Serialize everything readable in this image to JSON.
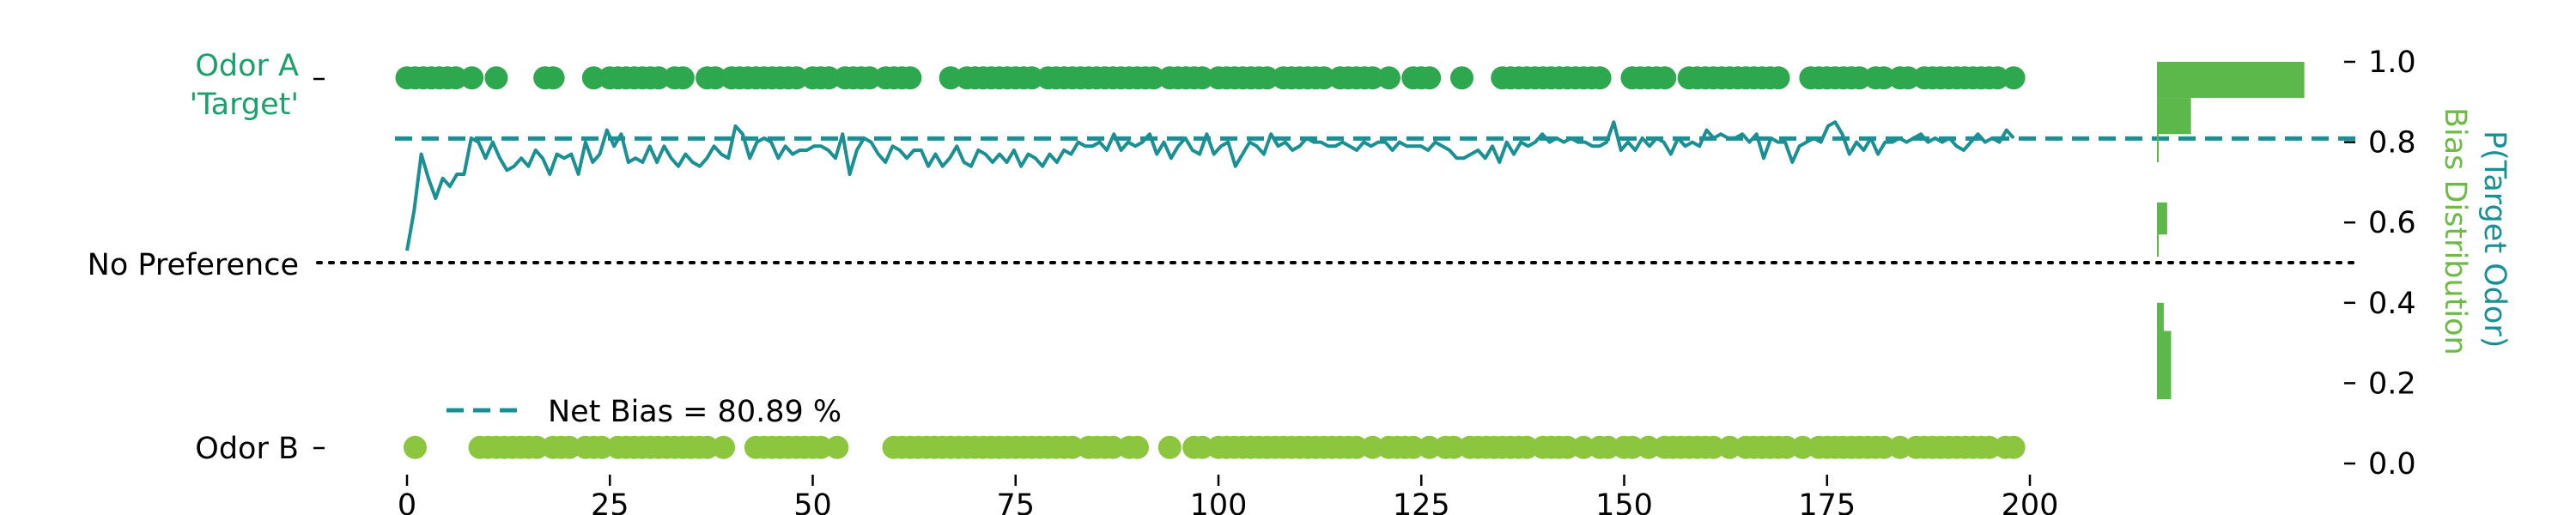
{
  "chart_data": {
    "type": "scatter",
    "title": "",
    "xlabel": "",
    "ylabel_left": "",
    "ylabel_right": "P(Target Odor)",
    "ylabel_right2": "Bias Distribution",
    "xlim": [
      0,
      200
    ],
    "ylim": [
      0,
      1
    ],
    "x_ticks": [
      0,
      25,
      50,
      75,
      100,
      125,
      150,
      175,
      200
    ],
    "right_ticks": [
      {
        "v": 0.0,
        "label": "0.0"
      },
      {
        "v": 0.2,
        "label": "0.2"
      },
      {
        "v": 0.4,
        "label": "0.4"
      },
      {
        "v": 0.6,
        "label": "0.6"
      },
      {
        "v": 0.8,
        "label": "0.8"
      },
      {
        "v": 1.0,
        "label": "1.0"
      }
    ],
    "left_labels": {
      "odor_a_line1": "Odor A",
      "odor_a_line2": "'Target'",
      "no_pref": "No Preference",
      "odor_b": "Odor B"
    },
    "legend": {
      "label": "Net Bias = 80.89 %",
      "placement": "lower-left"
    },
    "net_bias": 0.8089,
    "no_preference": 0.5,
    "odor_a_y": 0.96,
    "odor_b_y": 0.04,
    "colors": {
      "odor_a": "#2ea84f",
      "odor_b": "#8cc63f",
      "line": "#1a8f94",
      "hist": "#5cb84a",
      "odor_a_label": "#1aa06a",
      "hist_label": "#6dbb45"
    },
    "odor_a_trials": [
      0,
      1,
      2,
      3,
      4,
      5,
      6,
      8,
      11,
      17,
      18,
      23,
      25,
      26,
      27,
      28,
      29,
      30,
      31,
      33,
      34,
      37,
      38,
      40,
      41,
      42,
      43,
      44,
      45,
      46,
      47,
      48,
      50,
      51,
      52,
      54,
      55,
      56,
      57,
      59,
      60,
      61,
      62,
      67,
      69,
      70,
      71,
      72,
      73,
      74,
      75,
      76,
      77,
      79,
      80,
      81,
      82,
      83,
      84,
      85,
      86,
      87,
      88,
      89,
      90,
      91,
      92,
      94,
      95,
      96,
      97,
      98,
      100,
      101,
      102,
      103,
      104,
      105,
      106,
      108,
      109,
      110,
      111,
      112,
      113,
      115,
      116,
      117,
      118,
      119,
      121,
      124,
      125,
      126,
      130,
      135,
      136,
      137,
      138,
      139,
      140,
      141,
      142,
      143,
      144,
      145,
      146,
      147,
      151,
      152,
      153,
      154,
      155,
      158,
      159,
      160,
      161,
      162,
      163,
      164,
      165,
      166,
      167,
      168,
      169,
      173,
      174,
      175,
      176,
      177,
      178,
      179,
      181,
      182,
      184,
      185,
      187,
      188,
      189,
      190,
      191,
      192,
      193,
      194,
      195,
      196,
      198
    ],
    "odor_b_trials": [
      1,
      9,
      10,
      11,
      12,
      13,
      14,
      15,
      16,
      18,
      19,
      20,
      22,
      23,
      24,
      26,
      27,
      28,
      29,
      30,
      31,
      32,
      33,
      34,
      35,
      36,
      37,
      39,
      43,
      44,
      45,
      46,
      47,
      48,
      49,
      50,
      51,
      53,
      60,
      61,
      62,
      63,
      64,
      65,
      66,
      67,
      68,
      69,
      70,
      71,
      72,
      73,
      74,
      75,
      76,
      77,
      78,
      79,
      80,
      81,
      82,
      84,
      85,
      86,
      87,
      89,
      90,
      94,
      97,
      98,
      100,
      101,
      102,
      103,
      104,
      105,
      106,
      107,
      108,
      109,
      110,
      111,
      112,
      113,
      114,
      115,
      116,
      117,
      119,
      121,
      122,
      123,
      124,
      126,
      128,
      129,
      131,
      132,
      133,
      134,
      135,
      136,
      137,
      138,
      140,
      141,
      142,
      143,
      145,
      147,
      148,
      150,
      151,
      153,
      155,
      156,
      157,
      158,
      159,
      160,
      161,
      163,
      165,
      166,
      167,
      168,
      169,
      170,
      172,
      174,
      175,
      176,
      177,
      178,
      179,
      180,
      181,
      182,
      184,
      186,
      187,
      188,
      189,
      190,
      191,
      192,
      193,
      194,
      195,
      197,
      198
    ],
    "p_target": [
      0.53,
      0.63,
      0.77,
      0.71,
      0.66,
      0.71,
      0.69,
      0.72,
      0.72,
      0.81,
      0.8,
      0.76,
      0.8,
      0.76,
      0.73,
      0.74,
      0.76,
      0.74,
      0.78,
      0.76,
      0.72,
      0.77,
      0.76,
      0.77,
      0.72,
      0.8,
      0.75,
      0.77,
      0.83,
      0.79,
      0.82,
      0.75,
      0.76,
      0.75,
      0.79,
      0.75,
      0.79,
      0.76,
      0.74,
      0.77,
      0.75,
      0.74,
      0.76,
      0.79,
      0.77,
      0.76,
      0.84,
      0.82,
      0.76,
      0.8,
      0.81,
      0.8,
      0.76,
      0.79,
      0.77,
      0.78,
      0.78,
      0.79,
      0.79,
      0.78,
      0.76,
      0.82,
      0.72,
      0.78,
      0.81,
      0.8,
      0.77,
      0.75,
      0.79,
      0.78,
      0.76,
      0.78,
      0.78,
      0.74,
      0.77,
      0.74,
      0.76,
      0.79,
      0.75,
      0.74,
      0.78,
      0.77,
      0.75,
      0.77,
      0.75,
      0.78,
      0.74,
      0.77,
      0.76,
      0.74,
      0.77,
      0.75,
      0.78,
      0.77,
      0.8,
      0.79,
      0.79,
      0.8,
      0.78,
      0.82,
      0.78,
      0.8,
      0.79,
      0.8,
      0.82,
      0.77,
      0.8,
      0.76,
      0.79,
      0.81,
      0.78,
      0.77,
      0.82,
      0.77,
      0.79,
      0.8,
      0.74,
      0.77,
      0.8,
      0.79,
      0.77,
      0.82,
      0.79,
      0.8,
      0.78,
      0.79,
      0.81,
      0.8,
      0.8,
      0.79,
      0.79,
      0.8,
      0.79,
      0.78,
      0.8,
      0.79,
      0.8,
      0.8,
      0.78,
      0.8,
      0.79,
      0.79,
      0.79,
      0.78,
      0.8,
      0.79,
      0.78,
      0.76,
      0.76,
      0.77,
      0.78,
      0.76,
      0.79,
      0.75,
      0.8,
      0.77,
      0.8,
      0.79,
      0.8,
      0.82,
      0.8,
      0.81,
      0.8,
      0.81,
      0.8,
      0.8,
      0.79,
      0.79,
      0.8,
      0.85,
      0.78,
      0.8,
      0.78,
      0.81,
      0.79,
      0.81,
      0.8,
      0.77,
      0.81,
      0.79,
      0.8,
      0.79,
      0.83,
      0.81,
      0.82,
      0.81,
      0.81,
      0.82,
      0.8,
      0.82,
      0.76,
      0.81,
      0.8,
      0.8,
      0.75,
      0.79,
      0.8,
      0.81,
      0.8,
      0.84,
      0.85,
      0.82,
      0.77,
      0.8,
      0.78,
      0.81,
      0.77,
      0.8,
      0.8,
      0.81,
      0.8,
      0.81,
      0.82,
      0.8,
      0.81,
      0.8,
      0.81,
      0.79,
      0.78,
      0.8,
      0.82,
      0.8,
      0.81,
      0.8,
      0.83,
      0.81
    ],
    "bias_histogram": [
      {
        "lo": 0.16,
        "hi": 0.33,
        "w": 0.025
      },
      {
        "lo": 0.16,
        "hi": 0.4,
        "w": 0.012
      },
      {
        "lo": 0.515,
        "hi": 0.57,
        "w": 0.002
      },
      {
        "lo": 0.57,
        "hi": 0.65,
        "w": 0.018
      },
      {
        "lo": 0.75,
        "hi": 0.82,
        "w": 0.002
      },
      {
        "lo": 0.82,
        "hi": 0.91,
        "w": 0.06
      },
      {
        "lo": 0.91,
        "hi": 1.0,
        "w": 0.26
      }
    ]
  }
}
